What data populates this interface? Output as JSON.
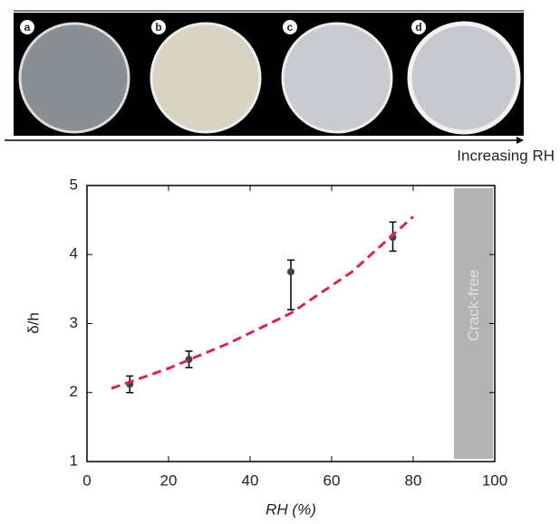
{
  "panels": [
    "a",
    "b",
    "c",
    "d"
  ],
  "arrow_label": "Increasing RH",
  "chart_data": {
    "type": "scatter",
    "xlabel": "RH (%)",
    "ylabel": "δ/h",
    "xlim": [
      0,
      100
    ],
    "ylim": [
      1,
      5
    ],
    "xticks": [
      0,
      20,
      40,
      60,
      80,
      100
    ],
    "yticks": [
      1,
      2,
      3,
      4,
      5
    ],
    "series": [
      {
        "type": "errorbar",
        "color": "#444444",
        "x": [
          10.5,
          25,
          50,
          75
        ],
        "values": [
          2.12,
          2.48,
          3.75,
          4.25
        ],
        "errors_low": [
          0.12,
          0.12,
          0.55,
          0.2
        ],
        "errors_high": [
          0.12,
          0.12,
          0.17,
          0.22
        ]
      },
      {
        "type": "line",
        "color": "#d6274a",
        "dashed": true,
        "x": [
          6,
          20,
          35,
          50,
          65,
          80
        ],
        "values": [
          2.06,
          2.35,
          2.72,
          3.15,
          3.75,
          4.55
        ]
      }
    ],
    "shaded_region": {
      "xlim": [
        90,
        100
      ],
      "label": "Crack-free",
      "color": "#b3b3b3"
    }
  }
}
